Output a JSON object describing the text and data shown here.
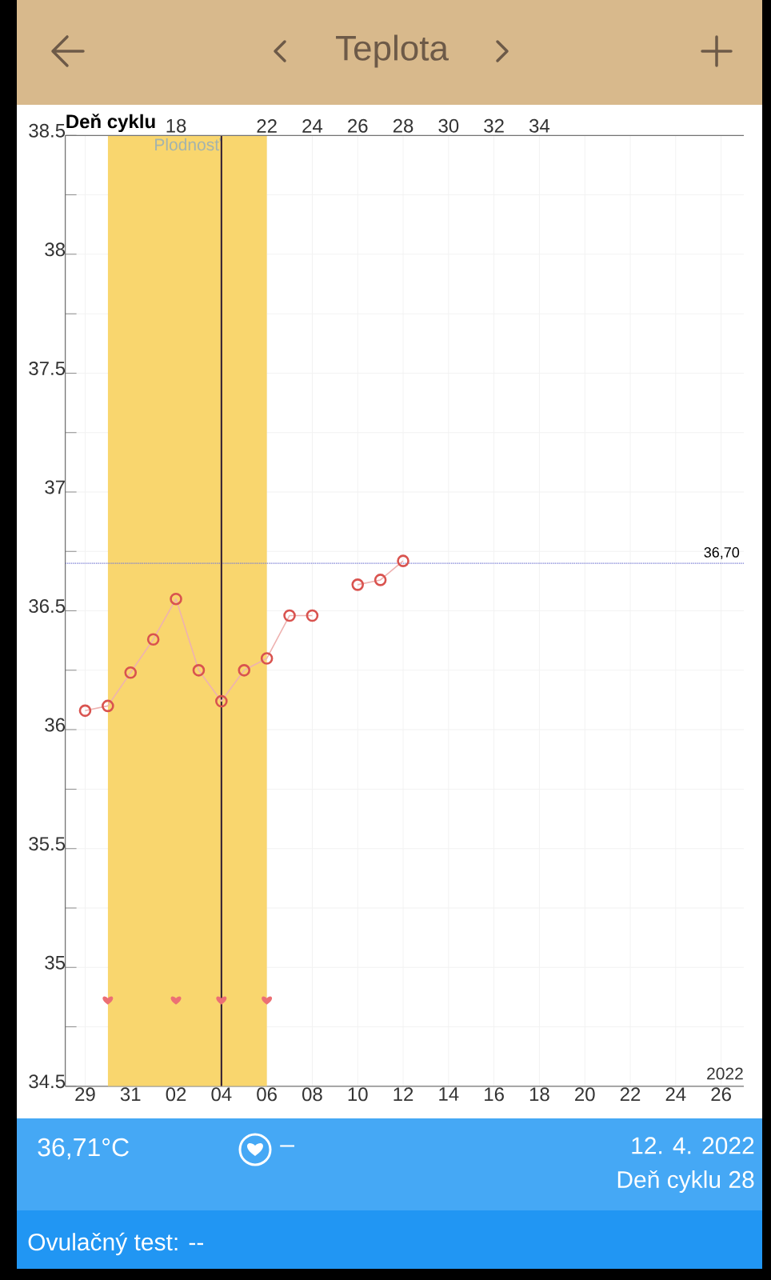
{
  "chart_data": {
    "type": "line",
    "title": "Teplota",
    "x2label": "Deň cyklu",
    "x": [
      "2022-03-29",
      "2022-03-30",
      "2022-03-31",
      "2022-04-01",
      "2022-04-02",
      "2022-04-03",
      "2022-04-04",
      "2022-04-05",
      "2022-04-06",
      "2022-04-07",
      "2022-04-08",
      "2022-04-09",
      "2022-04-10",
      "2022-04-11",
      "2022-04-12"
    ],
    "series": [
      {
        "color": "#d9534f",
        "values": [
          36.08,
          36.1,
          36.24,
          36.38,
          36.55,
          36.25,
          36.12,
          36.25,
          36.3,
          36.48,
          36.48,
          null,
          36.61,
          36.63,
          36.71
        ]
      },
      {
        "type": "scatter",
        "color": "#ec6f74",
        "x": [
          "2022-03-30",
          "2022-04-02",
          "2022-04-04",
          "2022-04-06"
        ],
        "values": [
          34.86,
          34.86,
          34.86,
          34.86
        ]
      }
    ],
    "xlim": [
      "2022-03-28T03:00",
      "2022-04-27T00:00"
    ],
    "xticks": [
      {
        "value": "2022-03-29",
        "label": "29"
      },
      {
        "value": "2022-03-31",
        "label": "31"
      },
      {
        "value": "2022-04-02",
        "label": "02"
      },
      {
        "value": "2022-04-04",
        "label": "04"
      },
      {
        "value": "2022-04-06",
        "label": "06"
      },
      {
        "value": "2022-04-08",
        "label": "08"
      },
      {
        "value": "2022-04-10",
        "label": "10"
      },
      {
        "value": "2022-04-12",
        "label": "12"
      },
      {
        "value": "2022-04-14",
        "label": "14"
      },
      {
        "value": "2022-04-16",
        "label": "16"
      },
      {
        "value": "2022-04-18",
        "label": "18"
      },
      {
        "value": "2022-04-20",
        "label": "20"
      },
      {
        "value": "2022-04-22",
        "label": "22"
      },
      {
        "value": "2022-04-24",
        "label": "24"
      },
      {
        "value": "2022-04-26",
        "label": "26"
      }
    ],
    "x2lim": [
      13.125,
      43
    ],
    "x2ticks": [
      18,
      22,
      24,
      26,
      28,
      30,
      32,
      34
    ],
    "ylim": [
      34.5,
      38.5
    ],
    "yticks": [
      34.5,
      {
        "value": 34.75,
        "label": null
      },
      35,
      {
        "value": 35.25,
        "label": null
      },
      35.5,
      {
        "value": 35.75,
        "label": null
      },
      36,
      {
        "value": 36.25,
        "label": null
      },
      36.5,
      {
        "value": 36.75,
        "label": null
      },
      37,
      {
        "value": 37.25,
        "label": null
      },
      37.5,
      {
        "value": 37.75,
        "label": null
      },
      38,
      {
        "value": 38.25,
        "label": null
      },
      38.5
    ],
    "ref_lines": [
      {
        "axis": "y",
        "value": 36.7,
        "label": "36,70",
        "color": "#7b7fd4",
        "line_style": "dotted"
      },
      {
        "axis": "x",
        "value": "2022-04-04",
        "color": "#2e1a33",
        "line_style": "solid"
      }
    ],
    "bands": [
      {
        "axis": "x",
        "from": "2022-03-30",
        "to": "2022-04-06",
        "label": "Plodnosť",
        "color": "#f9d66e"
      }
    ],
    "annotations": [
      "2022",
      "36,71°C",
      "–",
      "12. 4. 2022",
      "Deň cyklu 28",
      "Ovulačný test: --"
    ],
    "grid": true,
    "marker": "circle",
    "line_style": "solid"
  }
}
